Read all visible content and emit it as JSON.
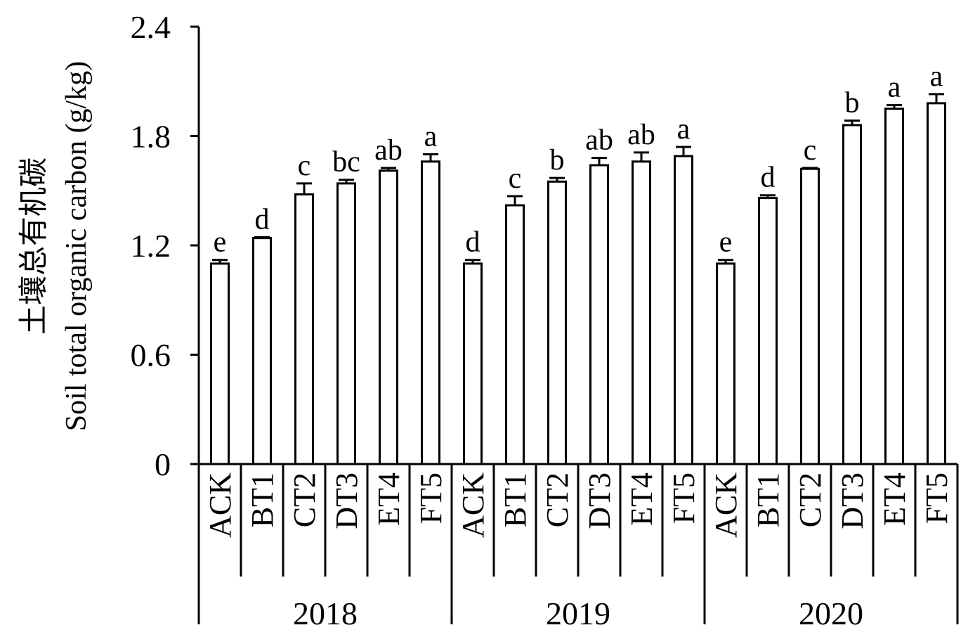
{
  "chart_data": {
    "type": "bar",
    "ylabel_cn": "土壤总有机碳",
    "ylabel": "Soil total organic carbon (g/kg)",
    "xlabel": "",
    "ylim": [
      0,
      2.4
    ],
    "yticks": [
      "0",
      "0.6",
      "1.2",
      "1.8",
      "2.4"
    ],
    "grid": false,
    "categories": [
      "ACK",
      "BT1",
      "CT2",
      "DT3",
      "ET4",
      "FT5"
    ],
    "groups": [
      {
        "name": "2018",
        "values": [
          1.1,
          1.24,
          1.48,
          1.54,
          1.61,
          1.66
        ],
        "errors": [
          0.02,
          0.005,
          0.06,
          0.02,
          0.015,
          0.04
        ],
        "letters": [
          "e",
          "d",
          "c",
          "bc",
          "ab",
          "a"
        ]
      },
      {
        "name": "2019",
        "values": [
          1.1,
          1.42,
          1.55,
          1.64,
          1.66,
          1.69
        ],
        "errors": [
          0.02,
          0.05,
          0.02,
          0.04,
          0.05,
          0.05
        ],
        "letters": [
          "d",
          "c",
          "b",
          "ab",
          "ab",
          "a"
        ]
      },
      {
        "name": "2020",
        "values": [
          1.1,
          1.46,
          1.62,
          1.86,
          1.95,
          1.98
        ],
        "errors": [
          0.02,
          0.015,
          0.005,
          0.025,
          0.02,
          0.05
        ],
        "letters": [
          "e",
          "d",
          "c",
          "b",
          "a",
          "a"
        ]
      }
    ]
  }
}
